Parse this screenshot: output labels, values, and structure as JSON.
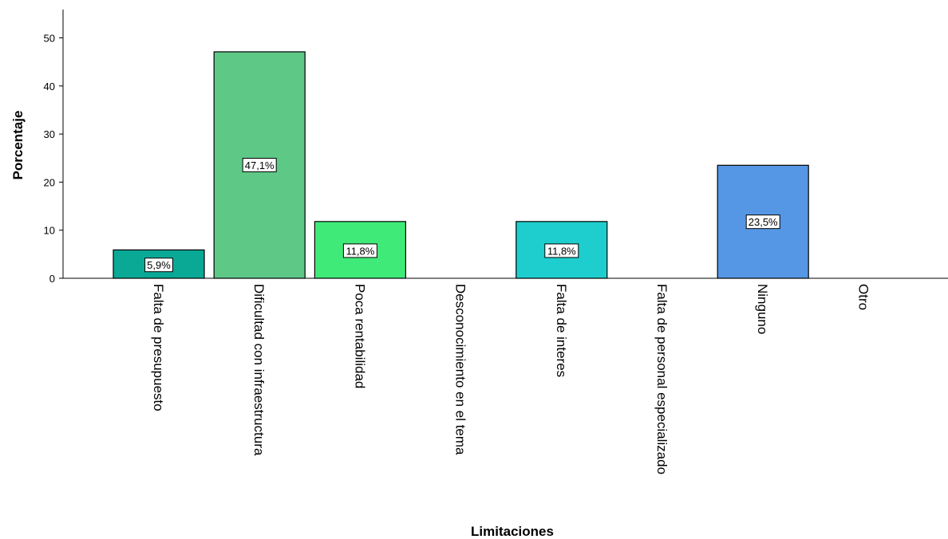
{
  "chart_data": {
    "type": "bar",
    "title": "",
    "xlabel": "Limitaciones",
    "ylabel": "Porcentaje",
    "ylim": [
      0,
      55
    ],
    "yticks": [
      0,
      10,
      20,
      30,
      40,
      50
    ],
    "grid": false,
    "categories": [
      "Falta de presupuesto",
      "Dificultad con infraestructura",
      "Poca rentabilidad",
      "Desconocimiento en el tema",
      "Falta de interes",
      "Falta de personal especializado",
      "Ninguno",
      "Otro"
    ],
    "values": [
      5.9,
      47.1,
      11.8,
      0,
      11.8,
      0,
      23.5,
      0
    ],
    "data_labels": [
      "5,9%",
      "47,1%",
      "11,8%",
      "",
      "11,8%",
      "",
      "23,5%",
      ""
    ],
    "colors": [
      "#0aa996",
      "#5ec987",
      "#3fea79",
      "",
      "#1ecece",
      "",
      "#5597e4",
      ""
    ],
    "bar_edge_color": "#000000"
  }
}
